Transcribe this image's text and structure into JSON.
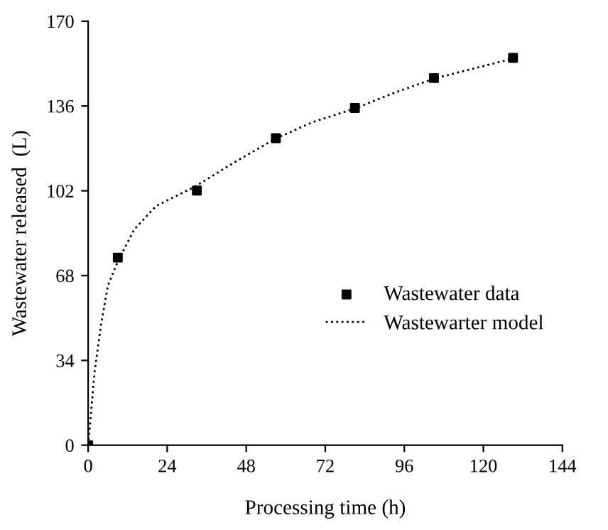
{
  "chart_data": {
    "type": "scatter",
    "xlabel": "Processing time (h)",
    "ylabel": "Wastewater released  (L)",
    "xlim": [
      0,
      144
    ],
    "xticks": [
      0,
      24,
      48,
      72,
      96,
      120,
      144
    ],
    "ylim": [
      0,
      170
    ],
    "yticks": [
      0,
      34,
      68,
      102,
      136,
      170
    ],
    "grid": false,
    "legend": "right",
    "series": [
      {
        "name": "Wastewater data",
        "marker": "square",
        "color": "#000000",
        "x": [
          0,
          9,
          33,
          57,
          81,
          105,
          129
        ],
        "values": [
          0,
          75.2,
          102.1,
          123.1,
          135.2,
          147.2,
          155.3
        ]
      },
      {
        "name": "Wastewarter model",
        "type": "line",
        "line_style": "dotted",
        "marker": "none",
        "color": "#000000",
        "x": [
          0,
          2,
          4,
          6,
          9,
          14,
          20.6,
          32.6,
          44.5,
          57,
          68.5,
          81,
          92.4,
          105,
          129
        ],
        "values": [
          0,
          30,
          49,
          64,
          73.7,
          86.5,
          95.9,
          103.8,
          113.5,
          123,
          129.7,
          135,
          141,
          147,
          155
        ]
      }
    ]
  }
}
